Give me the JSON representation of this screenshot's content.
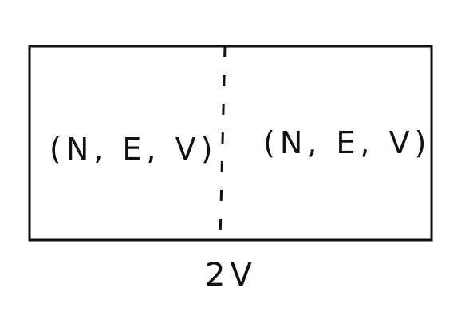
{
  "diagram": {
    "left_label": "(N, E, V)",
    "right_label": "(N, E, V)",
    "bottom_label": "2V"
  }
}
